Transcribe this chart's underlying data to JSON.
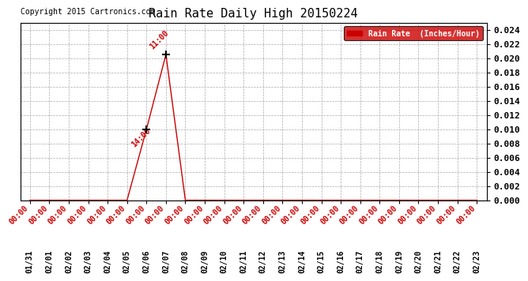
{
  "title": "Rain Rate Daily High 20150224",
  "copyright": "Copyright 2015 Cartronics.com",
  "legend_label": "Rain Rate  (Inches/Hour)",
  "legend_bg": "#cc0000",
  "legend_text_color": "#ffffff",
  "line_color": "#cc0000",
  "marker_color": "#000000",
  "x_dates": [
    "01/31",
    "02/01",
    "02/02",
    "02/03",
    "02/04",
    "02/05",
    "02/06",
    "02/07",
    "02/08",
    "02/09",
    "02/10",
    "02/11",
    "02/12",
    "02/13",
    "02/14",
    "02/15",
    "02/16",
    "02/17",
    "02/18",
    "02/19",
    "02/20",
    "02/21",
    "02/22",
    "02/23"
  ],
  "x_time_labels": [
    "00:00",
    "00:00",
    "00:00",
    "00:00",
    "00:00",
    "00:00",
    "00:00",
    "00:00",
    "00:00",
    "00:00",
    "00:00",
    "00:00",
    "00:00",
    "00:00",
    "00:00",
    "00:00",
    "00:00",
    "00:00",
    "00:00",
    "00:00",
    "00:00",
    "00:00",
    "00:00",
    "00:00"
  ],
  "y_values": [
    0.0,
    0.0,
    0.0,
    0.0,
    0.0,
    0.0,
    0.01,
    0.0205,
    0.0,
    0.0,
    0.0,
    0.0,
    0.0,
    0.0,
    0.0,
    0.0,
    0.0,
    0.0,
    0.0,
    0.0,
    0.0,
    0.0,
    0.0,
    0.0
  ],
  "peak_index": 7,
  "peak_label": "11:00",
  "secondary_index": 6,
  "secondary_label": "14:00",
  "ylim": [
    0,
    0.025
  ],
  "ytick_max": 0.024,
  "ytick_step": 0.002,
  "bg_color": "#ffffff",
  "grid_color": "#aaaaaa",
  "tick_label_color": "#cc0000",
  "date_label_color": "#000000",
  "title_color": "#000000",
  "font_family": "monospace",
  "time_label_fontsize": 7,
  "date_label_fontsize": 7,
  "ytick_fontsize": 8,
  "title_fontsize": 11
}
